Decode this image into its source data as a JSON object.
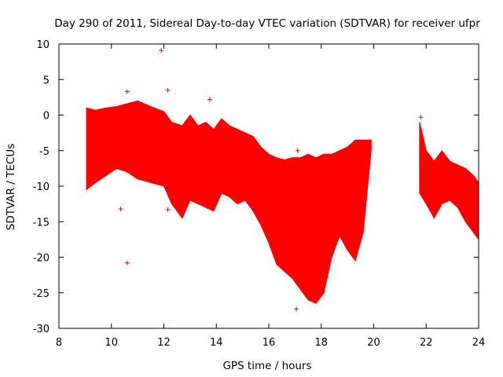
{
  "chart_data": {
    "type": "scatter",
    "title": "Day 290 of 2011, Sidereal Day-to-day VTEC variation (SDTVAR) for receiver ufpr",
    "xlabel": "GPS time / hours",
    "ylabel": "SDTVAR / TECUs",
    "xlim": [
      8,
      24
    ],
    "ylim": [
      -30,
      10
    ],
    "xticks": [
      8,
      10,
      12,
      14,
      16,
      18,
      20,
      22,
      24
    ],
    "yticks": [
      -30,
      -25,
      -20,
      -15,
      -10,
      -5,
      0,
      5,
      10
    ],
    "marker": "+",
    "color": "#ff0000",
    "envelope_series": [
      {
        "name": "SDTVAR band",
        "x": [
          9.05,
          9.4,
          9.8,
          10.2,
          10.6,
          11.0,
          11.5,
          12.0,
          12.3,
          12.7,
          13.0,
          13.3,
          13.6,
          13.9,
          14.2,
          14.5,
          14.8,
          15.1,
          15.4,
          15.7,
          16.0,
          16.3,
          16.6,
          16.9,
          17.2,
          17.5,
          17.8,
          18.1,
          18.4,
          18.7,
          19.0,
          19.3,
          19.6,
          19.9
        ],
        "upper": [
          1.0,
          0.7,
          1.0,
          1.2,
          1.6,
          2.0,
          1.2,
          0.5,
          -1.0,
          -1.5,
          0.0,
          -1.5,
          -1.0,
          -2.0,
          -0.5,
          -1.5,
          -2.0,
          -2.5,
          -3.0,
          -4.5,
          -5.5,
          -6.0,
          -6.3,
          -6.0,
          -6.0,
          -5.5,
          -6.0,
          -5.5,
          -5.5,
          -5.0,
          -4.5,
          -3.5,
          -3.5,
          -3.5
        ],
        "lower": [
          -10.5,
          -9.5,
          -8.5,
          -7.5,
          -8.0,
          -9.0,
          -9.5,
          -10.0,
          -12.5,
          -14.5,
          -12.0,
          -12.5,
          -13.0,
          -13.5,
          -11.0,
          -11.5,
          -12.5,
          -12.0,
          -13.5,
          -15.5,
          -18.0,
          -21.0,
          -22.0,
          -23.0,
          -24.5,
          -26.0,
          -26.5,
          -25.0,
          -20.0,
          -17.0,
          -19.0,
          -20.5,
          -16.5,
          -5.0
        ]
      },
      {
        "name": "SDTVAR band (late)",
        "x": [
          21.75,
          22.0,
          22.3,
          22.6,
          22.9,
          23.2,
          23.5,
          23.8,
          24.0
        ],
        "upper": [
          -1.0,
          -5.0,
          -6.5,
          -5.0,
          -6.5,
          -7.0,
          -7.5,
          -8.5,
          -9.5
        ],
        "lower": [
          -11.0,
          -12.5,
          -14.5,
          -12.5,
          -12.0,
          -13.0,
          -15.0,
          -16.5,
          -17.5
        ]
      }
    ],
    "outliers": [
      {
        "x": 11.9,
        "y": 9.1
      },
      {
        "x": 12.15,
        "y": 3.5
      },
      {
        "x": 10.6,
        "y": 3.3
      },
      {
        "x": 13.75,
        "y": 2.2
      },
      {
        "x": 10.35,
        "y": -13.2
      },
      {
        "x": 10.6,
        "y": -20.8
      },
      {
        "x": 13.65,
        "y": -12.9
      },
      {
        "x": 17.1,
        "y": -5.0
      },
      {
        "x": 17.05,
        "y": -27.3
      },
      {
        "x": 21.8,
        "y": -0.3
      },
      {
        "x": 12.15,
        "y": -13.3
      }
    ]
  }
}
